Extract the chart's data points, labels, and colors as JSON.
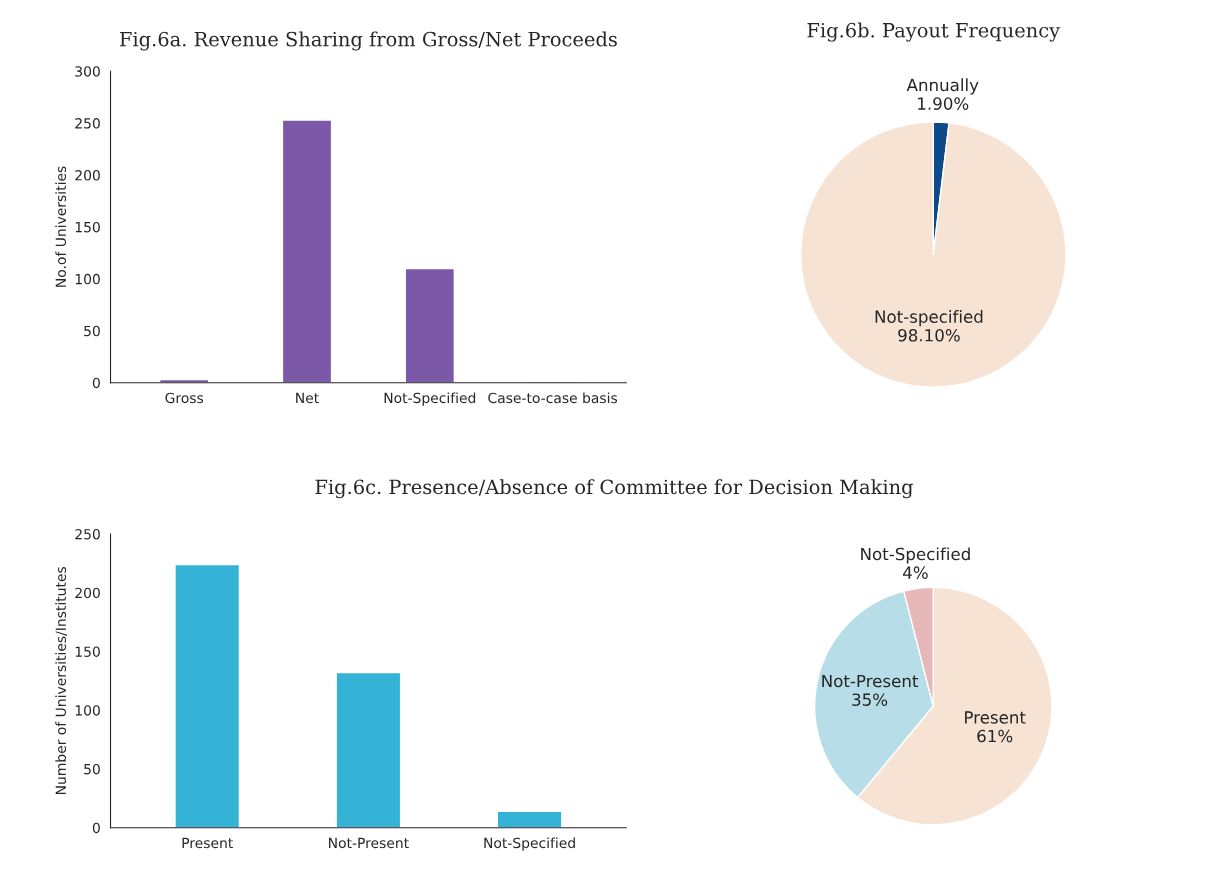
{
  "chart_data": [
    {
      "type": "bar",
      "title": "Fig.6a. Revenue Sharing from Gross/Net Proceeds",
      "ylabel": "No.of Universities",
      "categories": [
        "Gross",
        "Net",
        "Not-Specified",
        "Case-to-case basis"
      ],
      "values": [
        3,
        253,
        110,
        1
      ],
      "color": "#7b58a8",
      "ylim": [
        0,
        300
      ],
      "yticks": [
        0,
        50,
        100,
        150,
        200,
        250,
        300
      ],
      "grid": false,
      "legend": false
    },
    {
      "type": "pie",
      "title": "Fig.6b. Payout Frequency",
      "categories": [
        "Annually",
        "Not-specified"
      ],
      "values": [
        1.9,
        98.1
      ],
      "value_labels": [
        "1.90%",
        "98.10%"
      ],
      "colors": [
        "#0d4a8a",
        "#f7e3d3"
      ],
      "legend": false
    },
    {
      "type": "bar",
      "title": "Fig.6c. Presence/Absence of Committee for Decision Making",
      "ylabel": "Number of Universities/Institutes",
      "categories": [
        "Present",
        "Not-Present",
        "Not-Specified"
      ],
      "values": [
        224,
        132,
        14
      ],
      "color": "#35b3d6",
      "ylim": [
        0,
        250
      ],
      "yticks": [
        0,
        50,
        100,
        150,
        200,
        250
      ],
      "grid": false,
      "legend": false
    },
    {
      "type": "pie",
      "categories": [
        "Present",
        "Not-Present",
        "Not-Specified"
      ],
      "values": [
        61,
        35,
        4
      ],
      "value_labels": [
        "61%",
        "35%",
        "4%"
      ],
      "colors": [
        "#f7e3d3",
        "#b7dde8",
        "#e6b9b8"
      ],
      "legend": false
    }
  ]
}
